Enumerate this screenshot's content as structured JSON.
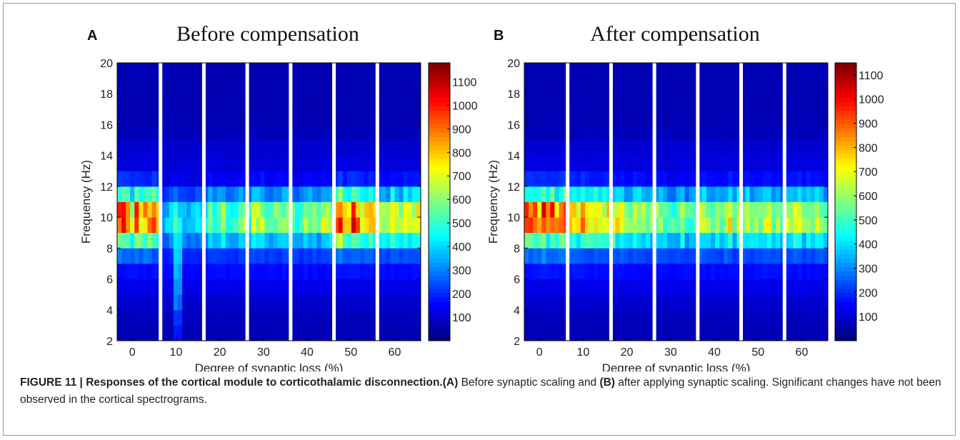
{
  "chart_data": [
    {
      "type": "heatmap",
      "panel_label": "A",
      "title": "Before compensation",
      "xlabel": "Degree of synaptic loss (%)",
      "ylabel": "Frequency (Hz)",
      "x_ticks": [
        "0",
        "10",
        "20",
        "30",
        "40",
        "50",
        "60"
      ],
      "y_ticks": [
        2,
        4,
        6,
        8,
        10,
        12,
        14,
        16,
        18,
        20
      ],
      "ylim": [
        2,
        20
      ],
      "colormap": "jet",
      "colorbar_ticks": [
        100,
        200,
        300,
        400,
        500,
        600,
        700,
        800,
        900,
        1000,
        1100
      ],
      "clim": [
        0,
        1180
      ],
      "blocks": [
        {
          "label": "0",
          "peak_power": 1150,
          "peak_freq": 10,
          "columns": 10
        },
        {
          "label": "10",
          "peak_power": 480,
          "peak_freq": 10,
          "columns": 10
        },
        {
          "label": "20",
          "peak_power": 690,
          "peak_freq": 10,
          "columns": 10
        },
        {
          "label": "30",
          "peak_power": 780,
          "peak_freq": 10,
          "columns": 10
        },
        {
          "label": "40",
          "peak_power": 720,
          "peak_freq": 10,
          "columns": 10
        },
        {
          "label": "50",
          "peak_power": 1120,
          "peak_freq": 10,
          "columns": 10
        },
        {
          "label": "60",
          "peak_power": 860,
          "peak_freq": 10,
          "columns": 10
        }
      ]
    },
    {
      "type": "heatmap",
      "panel_label": "B",
      "title": "After compensation",
      "xlabel": "Degree of synaptic loss (%)",
      "ylabel": "Frequency (Hz)",
      "x_ticks": [
        "0",
        "10",
        "20",
        "30",
        "40",
        "50",
        "60"
      ],
      "y_ticks": [
        2,
        4,
        6,
        8,
        10,
        12,
        14,
        16,
        18,
        20
      ],
      "ylim": [
        2,
        20
      ],
      "colormap": "jet",
      "colorbar_ticks": [
        100,
        200,
        300,
        400,
        500,
        600,
        700,
        800,
        900,
        1000,
        1100
      ],
      "clim": [
        0,
        1150
      ],
      "blocks": [
        {
          "label": "0",
          "peak_power": 1140,
          "peak_freq": 10,
          "columns": 10
        },
        {
          "label": "10",
          "peak_power": 960,
          "peak_freq": 10,
          "columns": 10
        },
        {
          "label": "20",
          "peak_power": 820,
          "peak_freq": 10,
          "columns": 10
        },
        {
          "label": "30",
          "peak_power": 720,
          "peak_freq": 10,
          "columns": 10
        },
        {
          "label": "40",
          "peak_power": 820,
          "peak_freq": 10,
          "columns": 10
        },
        {
          "label": "50",
          "peak_power": 840,
          "peak_freq": 10,
          "columns": 10
        },
        {
          "label": "60",
          "peak_power": 820,
          "peak_freq": 10,
          "columns": 10
        }
      ]
    }
  ],
  "caption": {
    "label": "FIGURE 11 | Responses of the cortical module to corticothalamic disconnection.",
    "a_label": "(A)",
    "a_text": " Before synaptic scaling and ",
    "b_label": "(B)",
    "b_text": " after applying synaptic scaling. Significant changes have not been observed in the cortical spectrograms."
  }
}
